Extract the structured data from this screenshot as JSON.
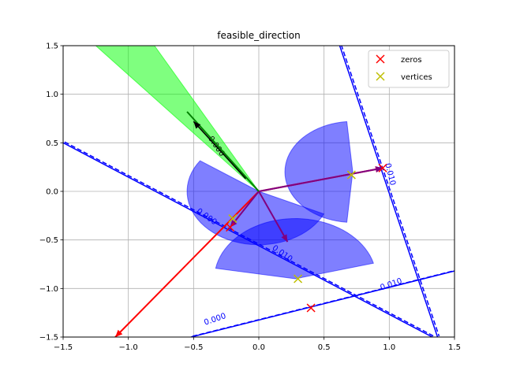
{
  "chart_data": {
    "type": "line",
    "title": "feasible_direction",
    "xlim": [
      -1.5,
      1.5
    ],
    "ylim": [
      -1.5,
      1.5
    ],
    "xticks": [
      -1.5,
      -1.0,
      -0.5,
      0.0,
      0.5,
      1.0,
      1.5
    ],
    "yticks": [
      -1.5,
      -1.0,
      -0.5,
      0.0,
      0.5,
      1.0,
      1.5
    ],
    "xtick_labels": [
      "−1.5",
      "−1.0",
      "−0.5",
      "0.0",
      "0.5",
      "1.0",
      "1.5"
    ],
    "ytick_labels": [
      "−1.5",
      "−1.0",
      "−0.5",
      "0.0",
      "0.5",
      "1.0",
      "1.5"
    ],
    "grid": true,
    "legend": {
      "placement": "top-right",
      "entries": [
        {
          "label": "zeros",
          "marker": "x",
          "color": "#ff0000"
        },
        {
          "label": "vertices",
          "marker": "x",
          "color": "#bfbf00"
        }
      ]
    },
    "zeros": [
      {
        "x": 0.95,
        "y": 0.24
      },
      {
        "x": -0.22,
        "y": -0.37
      },
      {
        "x": 0.4,
        "y": -1.2
      }
    ],
    "vertices": [
      {
        "x": 0.71,
        "y": 0.17
      },
      {
        "x": -0.2,
        "y": -0.28
      },
      {
        "x": 0.3,
        "y": -0.9
      }
    ],
    "constraint_lines": [
      {
        "name": "line_a",
        "color": "#0000ff",
        "points": [
          [
            -1.5,
            0.5
          ],
          [
            1.33,
            -1.5
          ]
        ],
        "label": "0.000",
        "label_at": [
          -0.41,
          -0.28
        ],
        "label_rot": 35
      },
      {
        "name": "line_b",
        "color": "#0000ff",
        "points": [
          [
            0.62,
            1.5
          ],
          [
            1.37,
            -1.5
          ]
        ],
        "label": "0.010",
        "label_at": [
          0.99,
          0.17
        ],
        "label_rot": 76
      },
      {
        "name": "line_c",
        "color": "#0000ff",
        "points": [
          [
            -0.52,
            -1.5
          ],
          [
            1.5,
            -0.82
          ]
        ],
        "label": "0.010",
        "label_at": [
          1.02,
          -0.98
        ],
        "label_rot": -19
      },
      {
        "name": "line_d",
        "color": "#0000ff",
        "points": [
          [
            0.2,
            1.5
          ],
          [
            0.3,
            1.5
          ]
        ],
        "label": "0.010",
        "label_at": [
          0.75,
          0.96
        ],
        "label_rot": 70
      }
    ],
    "extra_contour_labels": [
      {
        "text": "0.000",
        "at": [
          -0.33,
          -1.34
        ],
        "rot": -19
      },
      {
        "text": "0.010",
        "at": [
          0.17,
          -0.66
        ],
        "rot": 35
      },
      {
        "text": "0.000",
        "at": [
          -0.34,
          0.45
        ],
        "rot": 55
      }
    ],
    "red_arrows": [
      {
        "from": [
          0.0,
          0.0
        ],
        "to": [
          0.95,
          0.24
        ]
      },
      {
        "from": [
          0.0,
          0.0
        ],
        "to": [
          -1.1,
          -1.5
        ]
      }
    ],
    "purple_arrows": [
      {
        "from": [
          0.0,
          0.0
        ],
        "to": [
          0.95,
          0.24
        ]
      },
      {
        "from": [
          0.0,
          0.0
        ],
        "to": [
          -0.22,
          -0.37
        ]
      },
      {
        "from": [
          0.0,
          0.0
        ],
        "to": [
          0.22,
          -0.52
        ]
      }
    ],
    "cone": {
      "color": "#00ff00",
      "points": [
        [
          0.0,
          0.0
        ],
        [
          -1.25,
          1.5
        ],
        [
          -0.8,
          1.5
        ]
      ]
    },
    "green_line": {
      "from": [
        0.0,
        0.0
      ],
      "to": [
        -0.55,
        0.82
      ]
    },
    "black_arrow": {
      "from": [
        -0.1,
        0.13
      ],
      "to": [
        -0.5,
        0.72
      ]
    },
    "wedges": [
      {
        "center": [
          0.0,
          0.0
        ],
        "radius": 0.55,
        "theta1": 145,
        "theta2": -25,
        "color": "#0000ff"
      },
      {
        "center": [
          0.72,
          0.2
        ],
        "radius": 0.52,
        "theta1": 95,
        "theta2": 265,
        "color": "#0000ff"
      },
      {
        "center": [
          0.28,
          -0.9
        ],
        "radius": 0.62,
        "theta1": 15,
        "theta2": 170,
        "color": "#0000ff"
      }
    ]
  }
}
